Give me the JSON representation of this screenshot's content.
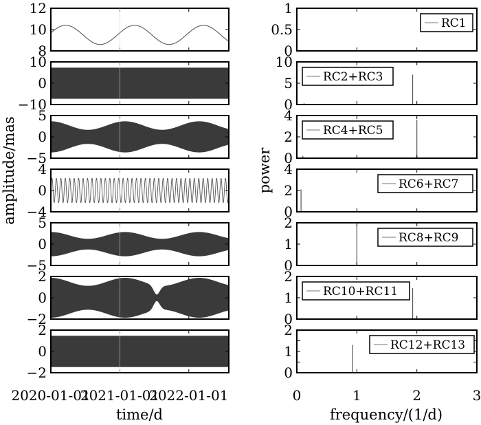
{
  "chart_data": {
    "type": "line",
    "left_column": {
      "ylabel": "amplitude/mas",
      "xlabel": "time/d",
      "x_tick_labels": [
        "2020-01-01",
        "2021-01-01",
        "2022-01-01"
      ],
      "x_range": [
        "2020-01-01",
        "2022-08-01"
      ],
      "panels": [
        {
          "ylim": [
            8,
            12
          ],
          "yticks": [
            "12",
            "10",
            "8"
          ],
          "signal": "sine",
          "mean": 9.5,
          "amplitude": 0.9,
          "period_days": 365,
          "phase_peak_date": "2020-03-20"
        },
        {
          "ylim": [
            -10,
            10
          ],
          "yticks": [
            "10",
            "0",
            "-10"
          ],
          "signal": "band",
          "envelope_min": 7.0,
          "envelope_max": 7.2,
          "mod_cycles": 0
        },
        {
          "ylim": [
            -5,
            5
          ],
          "yticks": [
            "5",
            "0",
            "-5"
          ],
          "signal": "band",
          "envelope_min": 1.6,
          "envelope_max": 3.6,
          "mod_cycles": 2.4
        },
        {
          "ylim": [
            -4,
            4
          ],
          "yticks": [
            "4",
            "0",
            "-4"
          ],
          "signal": "oscillation",
          "amplitude": 2.3,
          "cycles": 40
        },
        {
          "ylim": [
            -5,
            5
          ],
          "yticks": [
            "5",
            "0",
            "-5"
          ],
          "signal": "band",
          "envelope_min": 1.2,
          "envelope_max": 2.8,
          "mod_cycles": 2.4
        },
        {
          "ylim": [
            -2,
            2
          ],
          "yticks": [
            "2",
            "0",
            "-2"
          ],
          "signal": "band",
          "envelope_min": 1.1,
          "envelope_max": 1.85,
          "mod_cycles": 2.4
        },
        {
          "ylim": [
            -2,
            2
          ],
          "yticks": [
            "2",
            "0",
            "-2"
          ],
          "signal": "band",
          "envelope_min": 1.35,
          "envelope_max": 1.45,
          "mod_cycles": 0
        }
      ]
    },
    "right_column": {
      "ylabel": "power",
      "xlabel": "frequency/(1/d)",
      "xlim": [
        0,
        3
      ],
      "x_tick_labels": [
        "0",
        "1",
        "2",
        "3"
      ],
      "panels": [
        {
          "legend": "RC1",
          "ylim": [
            0,
            1
          ],
          "yticks": [
            "1",
            "0.5",
            "0"
          ],
          "peaks": []
        },
        {
          "legend": "RC2+RC3",
          "ylim": [
            0,
            10
          ],
          "yticks": [
            "10",
            "5",
            "0"
          ],
          "peaks": [
            {
              "freq": 1.93,
              "power": 7.0
            },
            {
              "freq": 0.12,
              "power": 0.3
            }
          ]
        },
        {
          "legend": "RC4+RC5",
          "ylim": [
            0,
            4
          ],
          "yticks": [
            "4",
            "2",
            "0"
          ],
          "peaks": [
            {
              "freq": 2.0,
              "power": 3.6
            },
            {
              "freq": 0.1,
              "power": 0.2
            }
          ]
        },
        {
          "legend": "RC6+RC7",
          "ylim": [
            0,
            4
          ],
          "yticks": [
            "4",
            "2",
            "0"
          ],
          "peaks": [
            {
              "freq": 0.07,
              "power": 2.1
            }
          ]
        },
        {
          "legend": "RC8+RC9",
          "ylim": [
            0,
            2
          ],
          "yticks": [
            "2",
            "1",
            "0"
          ],
          "peaks": [
            {
              "freq": 1.0,
              "power": 1.9
            }
          ]
        },
        {
          "legend": "RC10+RC11",
          "ylim": [
            0,
            2
          ],
          "yticks": [
            "2",
            "1",
            "0"
          ],
          "peaks": [
            {
              "freq": 1.93,
              "power": 1.45
            }
          ]
        },
        {
          "legend": "RC12+RC13",
          "ylim": [
            0,
            2
          ],
          "yticks": [
            "2",
            "1.5",
            "1",
            "0.5",
            "0"
          ],
          "peaks": [
            {
              "freq": 0.93,
              "power": 1.3
            }
          ]
        }
      ]
    }
  }
}
